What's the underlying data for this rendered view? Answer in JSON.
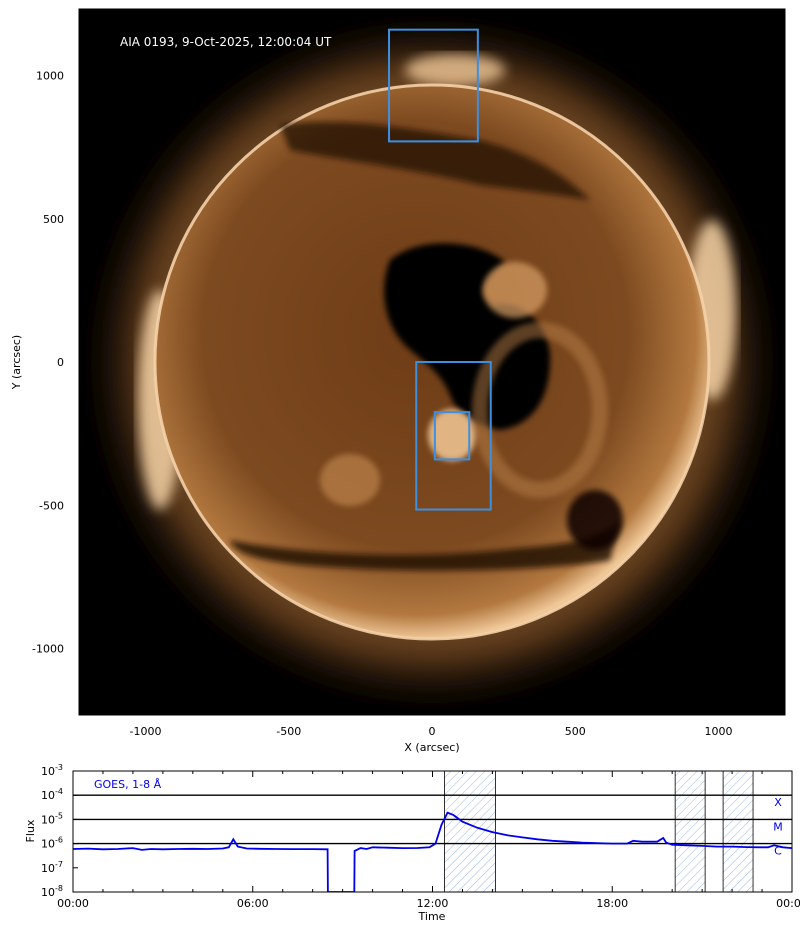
{
  "image": {
    "annotation": "AIA 0193, 9-Oct-2025, 12:00:04 UT",
    "xlabel": "X (arcsec)",
    "ylabel": "Y (arcsec)",
    "xticks": [
      -1000,
      -500,
      0,
      500,
      1000
    ],
    "yticks": [
      1000,
      500,
      0,
      -500,
      -1000
    ],
    "xlim": [
      -1230,
      1230
    ],
    "ylim": [
      -1230,
      1230
    ],
    "colors": {
      "disk": "#6b3a12",
      "corona": "#e0a66c",
      "limb": "#f5d2a8",
      "box": "#3d8fe0"
    }
  },
  "regions": [
    {
      "name": "north-limb-box",
      "x": [
        -150,
        160
      ],
      "y": [
        770,
        1160
      ]
    },
    {
      "name": "active-region-box-large",
      "x": [
        -55,
        205
      ],
      "y": [
        -515,
        0
      ]
    },
    {
      "name": "active-region-box-small",
      "x": [
        10,
        130
      ],
      "y": [
        -340,
        -175
      ]
    }
  ],
  "chart_data": {
    "type": "line",
    "annotation": "GOES, 1-8 Å",
    "xlabel": "Time",
    "ylabel": "Flux",
    "xticks": [
      "00:00",
      "06:00",
      "12:00",
      "18:00",
      "00:00"
    ],
    "xlim_hours": [
      0,
      24
    ],
    "ylog": true,
    "ylim": [
      1e-08,
      0.001
    ],
    "yticks": [
      "10-8",
      "10-7",
      "10-6",
      "10-5",
      "10-4",
      "10-3"
    ],
    "flare_levels": [
      {
        "label": "X",
        "value": 0.0001
      },
      {
        "label": "M",
        "value": 1e-05
      },
      {
        "label": "C",
        "value": 1e-06
      }
    ],
    "shaded_intervals_hours": [
      [
        12.4,
        14.1
      ],
      [
        20.1,
        21.1
      ],
      [
        21.7,
        22.7
      ]
    ],
    "series": [
      {
        "color": "#0000ee",
        "x": [
          0,
          0.5,
          1,
          1.5,
          2,
          2.3,
          2.6,
          3,
          3.5,
          4,
          4.5,
          5,
          5.2,
          5.35,
          5.5,
          5.8,
          6.2,
          6.8,
          7.4,
          8.0,
          8.5,
          8.51,
          9.39,
          9.4,
          9.6,
          9.8,
          10.0,
          10.5,
          11.0,
          11.5,
          11.9,
          12.1,
          12.3,
          12.5,
          12.7,
          13.0,
          13.5,
          14.0,
          14.5,
          15.0,
          15.5,
          16.0,
          16.5,
          17.0,
          17.5,
          18.0,
          18.5,
          18.7,
          19.0,
          19.5,
          19.7,
          19.8,
          20.0,
          20.5,
          21.0,
          21.5,
          22.0,
          22.5,
          23.0,
          23.2,
          23.4,
          23.7,
          24.0
        ],
        "y": [
          6e-07,
          6.2e-07,
          5.8e-07,
          6e-07,
          6.5e-07,
          5.5e-07,
          6e-07,
          5.8e-07,
          6e-07,
          6.1e-07,
          6e-07,
          6.3e-07,
          7e-07,
          1.5e-06,
          7.5e-07,
          6.3e-07,
          6.1e-07,
          6e-07,
          5.9e-07,
          5.9e-07,
          5.8e-07,
          1e-08,
          1e-08,
          5e-07,
          6.5e-07,
          6e-07,
          7e-07,
          6.8e-07,
          6.5e-07,
          6.6e-07,
          7e-07,
          1e-06,
          6e-06,
          1.9e-05,
          1.5e-05,
          8e-06,
          4.5e-06,
          3e-06,
          2.2e-06,
          1.8e-06,
          1.5e-06,
          1.3e-06,
          1.2e-06,
          1.1e-06,
          1.05e-06,
          1e-06,
          1e-06,
          1.3e-06,
          1.2e-06,
          1.2e-06,
          1.7e-06,
          1.1e-06,
          9e-07,
          8.5e-07,
          8e-07,
          7.5e-07,
          7.5e-07,
          7.2e-07,
          7e-07,
          7e-07,
          8.5e-07,
          7e-07,
          6.5e-07
        ]
      }
    ]
  }
}
